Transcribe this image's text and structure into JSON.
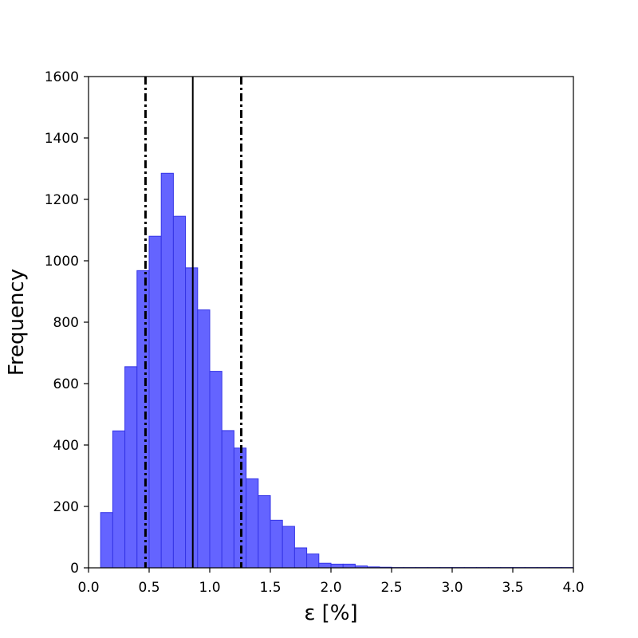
{
  "chart_data": {
    "type": "bar",
    "title": "",
    "xlabel": "ε [%]",
    "ylabel": "Frequency",
    "xlim": [
      0.0,
      4.0
    ],
    "ylim": [
      0,
      1600
    ],
    "xticks": [
      "0.0",
      "0.5",
      "1.0",
      "1.5",
      "2.0",
      "2.5",
      "3.0",
      "3.5",
      "4.0"
    ],
    "yticks": [
      "0",
      "200",
      "400",
      "600",
      "800",
      "1000",
      "1200",
      "1400",
      "1600"
    ],
    "grid": false,
    "bin_width": 0.1,
    "bins": [
      {
        "x0": 0.1,
        "count": 180
      },
      {
        "x0": 0.2,
        "count": 446
      },
      {
        "x0": 0.3,
        "count": 655
      },
      {
        "x0": 0.4,
        "count": 968
      },
      {
        "x0": 0.5,
        "count": 1080
      },
      {
        "x0": 0.6,
        "count": 1285
      },
      {
        "x0": 0.7,
        "count": 1145
      },
      {
        "x0": 0.8,
        "count": 977
      },
      {
        "x0": 0.9,
        "count": 840
      },
      {
        "x0": 1.0,
        "count": 640
      },
      {
        "x0": 1.1,
        "count": 447
      },
      {
        "x0": 1.2,
        "count": 390
      },
      {
        "x0": 1.3,
        "count": 290
      },
      {
        "x0": 1.4,
        "count": 235
      },
      {
        "x0": 1.5,
        "count": 155
      },
      {
        "x0": 1.6,
        "count": 135
      },
      {
        "x0": 1.7,
        "count": 65
      },
      {
        "x0": 1.8,
        "count": 45
      },
      {
        "x0": 1.9,
        "count": 15
      },
      {
        "x0": 2.0,
        "count": 12
      },
      {
        "x0": 2.1,
        "count": 12
      },
      {
        "x0": 2.2,
        "count": 6
      },
      {
        "x0": 2.3,
        "count": 3
      },
      {
        "x0": 2.4,
        "count": 2
      },
      {
        "x0": 2.5,
        "count": 1
      },
      {
        "x0": 2.6,
        "count": 1
      },
      {
        "x0": 2.7,
        "count": 1
      },
      {
        "x0": 2.8,
        "count": 1
      },
      {
        "x0": 2.9,
        "count": 1
      },
      {
        "x0": 3.0,
        "count": 1
      },
      {
        "x0": 3.1,
        "count": 1
      },
      {
        "x0": 3.2,
        "count": 1
      },
      {
        "x0": 3.3,
        "count": 1
      },
      {
        "x0": 3.4,
        "count": 1
      },
      {
        "x0": 3.5,
        "count": 1
      },
      {
        "x0": 3.6,
        "count": 1
      },
      {
        "x0": 3.7,
        "count": 1
      },
      {
        "x0": 3.8,
        "count": 1
      },
      {
        "x0": 3.9,
        "count": 1
      }
    ],
    "vertical_lines": [
      {
        "x": 0.47,
        "style": "dashdot"
      },
      {
        "x": 0.86,
        "style": "solid"
      },
      {
        "x": 1.26,
        "style": "dashdot"
      }
    ],
    "colors": {
      "bar_fill": "#6464ff",
      "bar_edge": "#3434e6",
      "line": "#000000"
    }
  }
}
